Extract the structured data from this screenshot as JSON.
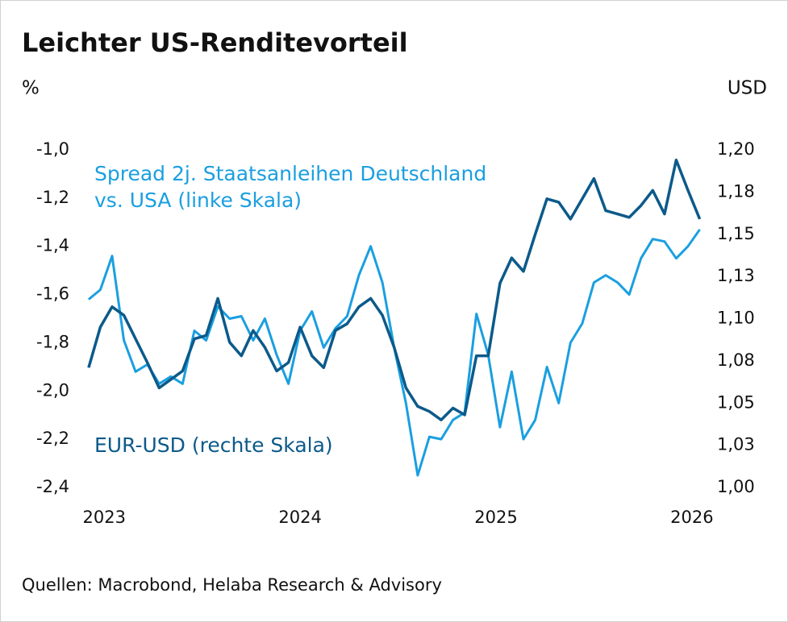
{
  "chart_data": {
    "type": "line",
    "title": "Leichter US-Renditevorteil",
    "y_label": "%",
    "y2_label": "USD",
    "source": "Quellen: Macrobond, Helaba Research & Advisory",
    "x": [
      2022.92,
      2022.98,
      2023.04,
      2023.1,
      2023.16,
      2023.22,
      2023.28,
      2023.34,
      2023.4,
      2023.46,
      2023.52,
      2023.58,
      2023.64,
      2023.7,
      2023.76,
      2023.82,
      2023.88,
      2023.94,
      2024.0,
      2024.06,
      2024.12,
      2024.18,
      2024.24,
      2024.3,
      2024.36,
      2024.42,
      2024.48,
      2024.54,
      2024.6,
      2024.66,
      2024.72,
      2024.78,
      2024.84,
      2024.9,
      2024.96,
      2025.02,
      2025.08,
      2025.14,
      2025.2,
      2025.26,
      2025.32,
      2025.38,
      2025.44,
      2025.5,
      2025.56,
      2025.62,
      2025.68,
      2025.74,
      2025.8,
      2025.86,
      2025.92,
      2025.98,
      2026.04
    ],
    "xlim": [
      2022.9,
      2026.05
    ],
    "xticks": [
      2023,
      2024,
      2025,
      2026
    ],
    "ylim": [
      -2.4,
      -1.0
    ],
    "yticks": [
      {
        "value": -2.4,
        "label": "-2,4"
      },
      {
        "value": -2.2,
        "label": "-2,2"
      },
      {
        "value": -2.0,
        "label": "-2,0"
      },
      {
        "value": -1.8,
        "label": "-1,8"
      },
      {
        "value": -1.6,
        "label": "-1,6"
      },
      {
        "value": -1.4,
        "label": "-1,4"
      },
      {
        "value": -1.2,
        "label": "-1,2"
      },
      {
        "value": -1.0,
        "label": "-1,0"
      }
    ],
    "y2lim": [
      1.0,
      1.2
    ],
    "y2ticks": [
      {
        "value": 1.0,
        "label": "1,00"
      },
      {
        "value": 1.025,
        "label": "1,03"
      },
      {
        "value": 1.05,
        "label": "1,05"
      },
      {
        "value": 1.075,
        "label": "1,08"
      },
      {
        "value": 1.1,
        "label": "1,10"
      },
      {
        "value": 1.125,
        "label": "1,13"
      },
      {
        "value": 1.15,
        "label": "1,15"
      },
      {
        "value": 1.175,
        "label": "1,18"
      },
      {
        "value": 1.2,
        "label": "1,20"
      }
    ],
    "grid": false,
    "series": [
      {
        "name": "Spread 2j. Staatsanleihen Deutschland vs. USA (linke Skala)",
        "color": "#1a9fe0",
        "values": [
          -1.62,
          -1.58,
          -1.44,
          -1.79,
          -1.92,
          -1.89,
          -1.97,
          -1.94,
          -1.97,
          -1.75,
          -1.79,
          -1.65,
          -1.7,
          -1.69,
          -1.79,
          -1.7,
          -1.85,
          -1.97,
          -1.75,
          -1.67,
          -1.82,
          -1.74,
          -1.69,
          -1.52,
          -1.4,
          -1.55,
          -1.82,
          -2.05,
          -2.35,
          -2.19,
          -2.2,
          -2.12,
          -2.09,
          -1.68,
          -1.85,
          -2.15,
          -1.92,
          -2.2,
          -2.12,
          -1.9,
          -2.05,
          -1.8,
          -1.72,
          -1.55,
          -1.52,
          -1.55,
          -1.6,
          -1.45,
          -1.37,
          -1.38,
          -1.45,
          -1.4,
          -1.33
        ]
      },
      {
        "name": "EUR-USD (rechte Skala)",
        "color": "#0c5a8a",
        "axis": "y2",
        "values": [
          1.071,
          1.095,
          1.107,
          1.102,
          1.088,
          1.074,
          1.059,
          1.064,
          1.069,
          1.088,
          1.09,
          1.112,
          1.086,
          1.078,
          1.093,
          1.083,
          1.069,
          1.074,
          1.095,
          1.078,
          1.071,
          1.093,
          1.097,
          1.107,
          1.112,
          1.102,
          1.083,
          1.059,
          1.048,
          1.045,
          1.04,
          1.047,
          1.043,
          1.078,
          1.078,
          1.121,
          1.136,
          1.128,
          1.15,
          1.171,
          1.169,
          1.159,
          1.171,
          1.183,
          1.164,
          1.162,
          1.16,
          1.167,
          1.176,
          1.162,
          1.194,
          1.176,
          1.159
        ]
      }
    ]
  }
}
